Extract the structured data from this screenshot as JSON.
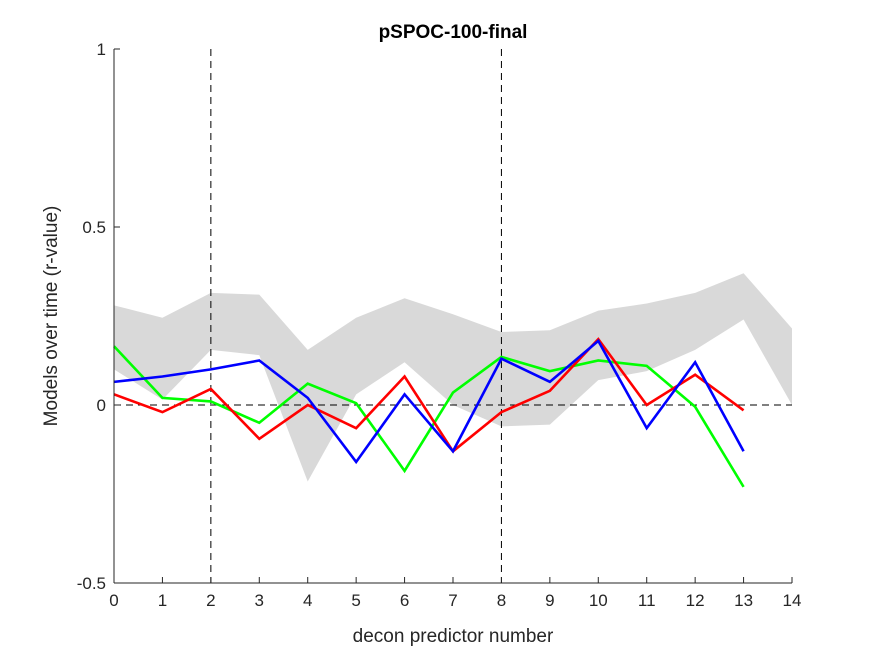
{
  "chart_data": {
    "type": "line",
    "title": "pSPOC-100-final",
    "xlabel": "decon predictor number",
    "ylabel": "Models over time (r-value)",
    "xlim": [
      0,
      14
    ],
    "ylim": [
      -0.5,
      1
    ],
    "xticks": [
      0,
      1,
      2,
      3,
      4,
      5,
      6,
      7,
      8,
      9,
      10,
      11,
      12,
      13,
      14
    ],
    "xtick_labels": [
      "0",
      "1",
      "2",
      "3",
      "4",
      "5",
      "6",
      "7",
      "8",
      "9",
      "10",
      "11",
      "12",
      "13",
      "14"
    ],
    "yticks": [
      -0.5,
      0,
      0.5,
      1
    ],
    "ytick_labels": [
      "-0.5",
      "0",
      "0.5",
      "1"
    ],
    "grid": false,
    "reference_lines": {
      "vertical_dashed_x": [
        2,
        8
      ],
      "horizontal_dashed_y": 0
    },
    "band": {
      "color": "#d9d9d9",
      "x": [
        0,
        1,
        2,
        3,
        4,
        5,
        6,
        7,
        8,
        9,
        10,
        11,
        12,
        13,
        14
      ],
      "upper": [
        0.28,
        0.245,
        0.315,
        0.31,
        0.155,
        0.245,
        0.3,
        0.255,
        0.205,
        0.21,
        0.265,
        0.285,
        0.315,
        0.37,
        0.215
      ],
      "lower": [
        0.1,
        0.015,
        0.155,
        0.14,
        -0.215,
        0.03,
        0.12,
        0.0,
        -0.06,
        -0.055,
        0.07,
        0.095,
        0.155,
        0.24,
        0.0
      ]
    },
    "series": [
      {
        "color": "#00ff00",
        "x": [
          0,
          1,
          2,
          3,
          4,
          5,
          6,
          7,
          8,
          9,
          10,
          11,
          12,
          13
        ],
        "values": [
          0.165,
          0.02,
          0.01,
          -0.05,
          0.06,
          0.005,
          -0.185,
          0.035,
          0.135,
          0.095,
          0.125,
          0.11,
          -0.005,
          -0.23
        ]
      },
      {
        "color": "#ff0000",
        "x": [
          0,
          1,
          2,
          3,
          4,
          5,
          6,
          7,
          8,
          9,
          10,
          11,
          12,
          13
        ],
        "values": [
          0.03,
          -0.02,
          0.045,
          -0.095,
          0.0,
          -0.065,
          0.08,
          -0.13,
          -0.02,
          0.04,
          0.185,
          0.0,
          0.085,
          -0.015
        ]
      },
      {
        "color": "#0000ff",
        "x": [
          0,
          1,
          2,
          3,
          4,
          5,
          6,
          7,
          8,
          9,
          10,
          11,
          12,
          13
        ],
        "values": [
          0.065,
          0.08,
          0.1,
          0.125,
          0.02,
          -0.16,
          0.03,
          -0.13,
          0.13,
          0.065,
          0.18,
          -0.065,
          0.12,
          -0.13
        ]
      }
    ]
  }
}
